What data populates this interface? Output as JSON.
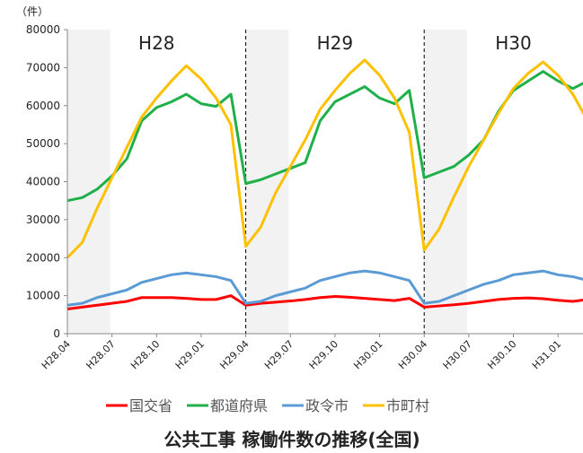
{
  "chart_data": {
    "type": "line",
    "title": "公共工事 稼働件数の推移(全国)",
    "y_unit": "（件）",
    "annotations": [
      "H28",
      "H29",
      "H30"
    ],
    "categories": [
      "H28.04",
      null,
      null,
      "H28.07",
      null,
      null,
      "H28.10",
      null,
      null,
      "H29.01",
      null,
      null,
      "H29.04",
      null,
      null,
      "H29.07",
      null,
      null,
      "H29.10",
      null,
      null,
      "H30.01",
      null,
      null,
      "H30.04",
      null,
      null,
      "H30.07",
      null,
      null,
      "H30.10",
      null,
      null,
      "H31.01",
      null,
      null
    ],
    "series": [
      {
        "name": "国交省",
        "color": "#ff0000",
        "values": [
          6500,
          7000,
          7500,
          8000,
          8500,
          9500,
          9500,
          9500,
          9300,
          9000,
          9000,
          10000,
          7500,
          8000,
          8300,
          8600,
          9000,
          9500,
          9800,
          9600,
          9300,
          9000,
          8700,
          9300,
          7000,
          7300,
          7600,
          8000,
          8500,
          9000,
          9300,
          9400,
          9200,
          8800,
          8500,
          9000
        ]
      },
      {
        "name": "都道府県",
        "color": "#1fb04a",
        "values": [
          35000,
          35800,
          38000,
          41500,
          46000,
          56000,
          59500,
          61000,
          63000,
          60500,
          59800,
          63000,
          39500,
          40500,
          42000,
          43500,
          45000,
          56000,
          61000,
          63000,
          65000,
          62000,
          60500,
          64000,
          41000,
          42500,
          44000,
          47000,
          51000,
          58500,
          64000,
          66500,
          69000,
          66500,
          64500,
          66500
        ]
      },
      {
        "name": "政令市",
        "color": "#5b9bd5",
        "values": [
          7500,
          8000,
          9500,
          10500,
          11500,
          13500,
          14500,
          15500,
          16000,
          15500,
          15000,
          14000,
          8000,
          8500,
          10000,
          11000,
          12000,
          14000,
          15000,
          16000,
          16500,
          16000,
          15000,
          14000,
          8000,
          8500,
          10000,
          11500,
          13000,
          14000,
          15500,
          16000,
          16500,
          15500,
          15000,
          14000
        ]
      },
      {
        "name": "市町村",
        "color": "#ffc000",
        "values": [
          20000,
          24000,
          33000,
          41000,
          49000,
          57000,
          62000,
          66500,
          70500,
          67000,
          62000,
          55000,
          23000,
          28000,
          37000,
          44000,
          51000,
          59000,
          64000,
          68500,
          72000,
          68000,
          62000,
          53000,
          22000,
          27500,
          36000,
          44000,
          51000,
          58000,
          64500,
          68500,
          71500,
          68000,
          63000,
          56000
        ]
      }
    ],
    "ylim": [
      0,
      80000
    ],
    "yticks": [
      0,
      10000,
      20000,
      30000,
      40000,
      50000,
      60000,
      70000,
      80000
    ]
  }
}
